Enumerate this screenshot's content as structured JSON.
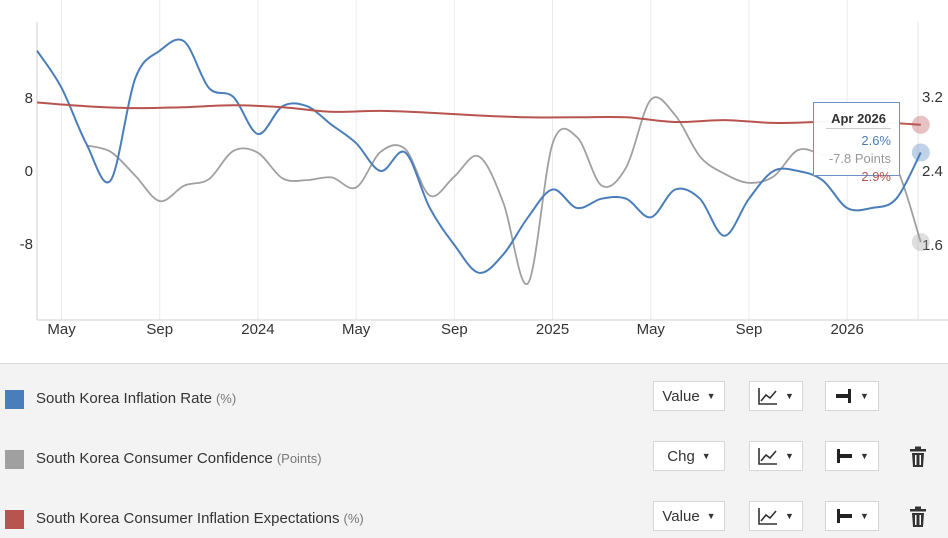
{
  "chart_data": {
    "type": "line",
    "x_tick_labels": [
      "May",
      "Sep",
      "2024",
      "May",
      "Sep",
      "2025",
      "May",
      "Sep",
      "2026"
    ],
    "y_left_ticks": [
      "8",
      "0",
      "-8"
    ],
    "y_right_ticks": [
      "3.2",
      "2.4",
      "1.6"
    ],
    "y_left_range": [
      -16,
      16
    ],
    "y_right_range": [
      0.8,
      4.0
    ],
    "grid": true,
    "series": [
      {
        "name": "South Korea Inflation Rate",
        "unit": "(%)",
        "color": "#4a7ebb",
        "axis": "right",
        "x": [
          "2023-04",
          "2023-05",
          "2023-06",
          "2023-07",
          "2023-08",
          "2023-09",
          "2023-10",
          "2023-11",
          "2023-12",
          "2024-01",
          "2024-02",
          "2024-03",
          "2024-04",
          "2024-05",
          "2024-06",
          "2024-07",
          "2024-08",
          "2024-09",
          "2024-10",
          "2024-11",
          "2024-12",
          "2025-01",
          "2025-02",
          "2025-03",
          "2025-04",
          "2025-05",
          "2025-06",
          "2025-07",
          "2025-08",
          "2025-09",
          "2025-10",
          "2025-11",
          "2025-12",
          "2026-01",
          "2026-02",
          "2026-03",
          "2026-04"
        ],
        "values": [
          3.7,
          3.3,
          2.7,
          2.3,
          3.4,
          3.7,
          3.8,
          3.3,
          3.2,
          2.8,
          3.1,
          3.1,
          2.9,
          2.7,
          2.4,
          2.6,
          2.0,
          1.6,
          1.3,
          1.5,
          1.9,
          2.2,
          2.0,
          2.1,
          2.1,
          1.9,
          2.2,
          2.1,
          1.7,
          2.1,
          2.4,
          2.4,
          2.3,
          2.0,
          2.0,
          2.1,
          2.6
        ]
      },
      {
        "name": "South Korea Consumer Confidence",
        "unit": "(Points)",
        "color": "#a0a0a0",
        "axis": "left",
        "x": [
          "2023-06",
          "2023-07",
          "2023-08",
          "2023-09",
          "2023-10",
          "2023-11",
          "2023-12",
          "2024-01",
          "2024-02",
          "2024-03",
          "2024-04",
          "2024-05",
          "2024-06",
          "2024-07",
          "2024-08",
          "2024-09",
          "2024-10",
          "2024-11",
          "2024-12",
          "2025-01",
          "2025-02",
          "2025-03",
          "2025-04",
          "2025-05",
          "2025-06",
          "2025-07",
          "2025-08",
          "2025-09",
          "2025-10",
          "2025-11",
          "2025-12",
          "2026-01",
          "2026-02",
          "2026-03",
          "2026-04"
        ],
        "values": [
          2.8,
          2.1,
          -0.5,
          -3.3,
          -1.6,
          -0.9,
          2.2,
          2.0,
          -0.8,
          -1.0,
          -0.7,
          -1.8,
          2.1,
          2.4,
          -2.7,
          -0.6,
          1.6,
          -3.5,
          -12.3,
          3.0,
          3.7,
          -1.6,
          0.4,
          7.8,
          6.1,
          1.6,
          -0.3,
          -1.3,
          -0.6,
          2.3,
          1.8,
          1.4,
          2.0,
          0.4,
          -7.8
        ]
      },
      {
        "name": "South Korea Consumer Inflation Expectations",
        "unit": "(%)",
        "color": "#b85450",
        "axis": "right",
        "x": [
          "2023-04",
          "2023-06",
          "2023-08",
          "2023-10",
          "2023-12",
          "2024-02",
          "2024-04",
          "2024-06",
          "2024-08",
          "2024-10",
          "2024-12",
          "2025-02",
          "2025-04",
          "2025-06",
          "2025-08",
          "2025-10",
          "2025-12",
          "2026-02",
          "2026-04"
        ],
        "values": [
          3.14,
          3.1,
          3.08,
          3.09,
          3.11,
          3.09,
          3.04,
          3.05,
          3.03,
          3.0,
          2.98,
          2.98,
          2.98,
          2.93,
          2.95,
          2.92,
          2.93,
          2.93,
          2.9
        ]
      }
    ]
  },
  "tooltip": {
    "date": "Apr 2026",
    "inflation_rate": "2.6%",
    "consumer_confidence": "-7.8 Points",
    "inflation_expectations": "2.9%"
  },
  "legend": {
    "rows": [
      {
        "name": "South Korea Inflation Rate",
        "unit": "(%)",
        "color": "#4a7ebb",
        "value_mode": "Value",
        "deletable": false
      },
      {
        "name": "South Korea Consumer Confidence",
        "unit": "(Points)",
        "color": "#a0a0a0",
        "value_mode": "Chg",
        "deletable": true
      },
      {
        "name": "South Korea Consumer Inflation Expectations",
        "unit": "(%)",
        "color": "#b85450",
        "value_mode": "Value",
        "deletable": true
      }
    ]
  },
  "icons": {
    "chart_type": "line-chart-icon",
    "axis_right": "right-axis-icon",
    "axis_left": "left-axis-icon",
    "delete": "trash-icon"
  }
}
